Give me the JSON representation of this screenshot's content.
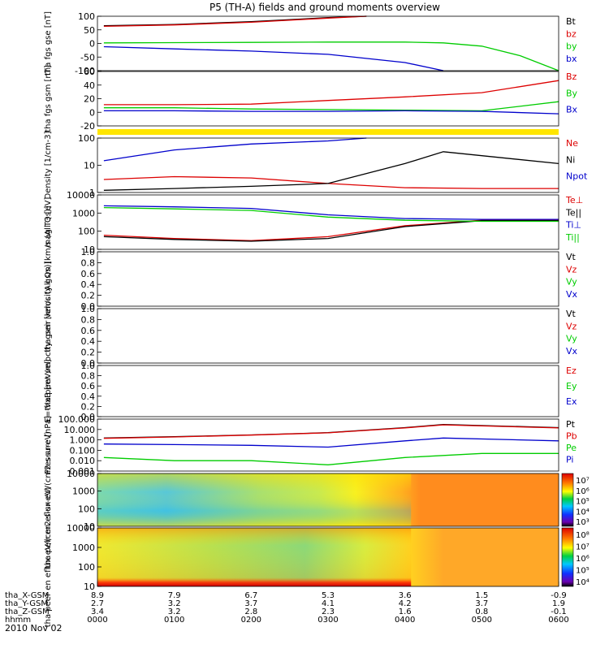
{
  "title": "P5 (TH-A) fields and ground moments overview",
  "date_label": "2010 Nov 02",
  "x_axis": {
    "rows": [
      {
        "label": "tha_X-GSM",
        "values": [
          "8.9",
          "7.9",
          "6.7",
          "5.3",
          "3.6",
          "1.5",
          "-0.9"
        ]
      },
      {
        "label": "tha_Y-GSM",
        "values": [
          "2.7",
          "3.2",
          "3.7",
          "4.1",
          "4.2",
          "3.7",
          "1.9"
        ]
      },
      {
        "label": "tha_Z-GSM",
        "values": [
          "3.4",
          "3.2",
          "2.8",
          "2.3",
          "1.6",
          "0.8",
          "-0.1"
        ]
      },
      {
        "label": "hhmm",
        "values": [
          "0000",
          "0100",
          "0200",
          "0300",
          "0400",
          "0500",
          "0600"
        ]
      }
    ]
  },
  "colors": {
    "black": "#000000",
    "red": "#dd0000",
    "green": "#00cc00",
    "blue": "#0000cc",
    "yellow": "#ffe600"
  },
  "chart_data": [
    {
      "type": "line",
      "id": "fgs_gse",
      "ylabel": "tha fgs gse [nT]",
      "yticks": [
        "100",
        "50",
        "0",
        "-50",
        "-100"
      ],
      "ylim": [
        -100,
        100
      ],
      "series": [
        {
          "name": "Bt",
          "color": "black",
          "x": [
            "0005",
            "0100",
            "0200",
            "0300",
            "0330"
          ],
          "y": [
            65,
            70,
            80,
            95,
            100
          ]
        },
        {
          "name": "bz",
          "color": "red",
          "x": [
            "0005",
            "0100",
            "0200",
            "0300",
            "0330"
          ],
          "y": [
            63,
            68,
            78,
            93,
            100
          ]
        },
        {
          "name": "by",
          "color": "green",
          "x": [
            "0005",
            "0100",
            "0200",
            "0300",
            "0400",
            "0430",
            "0500",
            "0530",
            "0600"
          ],
          "y": [
            2,
            3,
            4,
            5,
            5,
            2,
            -10,
            -45,
            -100
          ]
        },
        {
          "name": "bx",
          "color": "blue",
          "x": [
            "0005",
            "0100",
            "0200",
            "0300",
            "0400",
            "0430"
          ],
          "y": [
            -12,
            -20,
            -28,
            -40,
            -70,
            -100
          ]
        }
      ]
    },
    {
      "type": "line",
      "id": "fgs_gsm",
      "ylabel": "tha fgs gsm [nT]",
      "yticks": [
        "60",
        "40",
        "20",
        "0",
        "-20"
      ],
      "ylim": [
        -30,
        60
      ],
      "series": [
        {
          "name": "Bz",
          "color": "red",
          "x": [
            "0005",
            "0100",
            "0200",
            "0300",
            "0400",
            "0500",
            "0600"
          ],
          "y": [
            5,
            5,
            6,
            12,
            18,
            25,
            45
          ]
        },
        {
          "name": "By",
          "color": "green",
          "x": [
            "0005",
            "0100",
            "0200",
            "0300",
            "0400",
            "0500",
            "0600"
          ],
          "y": [
            0,
            0,
            -2,
            -3,
            -4,
            -5,
            10
          ]
        },
        {
          "name": "Bx",
          "color": "blue",
          "x": [
            "0005",
            "0100",
            "0200",
            "0300",
            "0400",
            "0500",
            "0600"
          ],
          "y": [
            -5,
            -5,
            -6,
            -6,
            -5,
            -6,
            -10
          ]
        }
      ]
    },
    {
      "type": "line",
      "id": "density",
      "ylabel": "Density [1/cm-3]",
      "yticks": [
        "100",
        "10",
        "1"
      ],
      "ylim": [
        0.8,
        200
      ],
      "yscale": "log",
      "series": [
        {
          "name": "Ne",
          "color": "red",
          "x": [
            "0005",
            "0100",
            "0200",
            "0300",
            "0400",
            "0500",
            "0600"
          ],
          "y": [
            3,
            4,
            3.5,
            2,
            1.3,
            1.2,
            1.2
          ]
        },
        {
          "name": "Ni",
          "color": "black",
          "x": [
            "0005",
            "0100",
            "0200",
            "0300",
            "0400",
            "0430",
            "0600"
          ],
          "y": [
            1,
            1.2,
            1.5,
            2,
            15,
            50,
            15
          ]
        },
        {
          "name": "Npot",
          "color": "blue",
          "x": [
            "0005",
            "0100",
            "0200",
            "0300",
            "0330"
          ],
          "y": [
            20,
            60,
            110,
            150,
            200
          ]
        }
      ]
    },
    {
      "type": "line",
      "id": "temperature",
      "ylabel": "mag T3 [eV]",
      "yticks": [
        "10000",
        "1000",
        "100",
        "10"
      ],
      "ylim": [
        10,
        10000
      ],
      "yscale": "log",
      "series": [
        {
          "name": "Te⊥",
          "color": "red",
          "x": [
            "0005",
            "0100",
            "0200",
            "0300",
            "0400",
            "0500",
            "0600"
          ],
          "y": [
            60,
            40,
            30,
            50,
            200,
            400,
            400
          ]
        },
        {
          "name": "Te||",
          "color": "black",
          "x": [
            "0005",
            "0100",
            "0200",
            "0300",
            "0400",
            "0500",
            "0600"
          ],
          "y": [
            50,
            35,
            28,
            40,
            180,
            380,
            380
          ]
        },
        {
          "name": "Ti⊥",
          "color": "blue",
          "x": [
            "0005",
            "0100",
            "0200",
            "0300",
            "0400",
            "0500",
            "0600"
          ],
          "y": [
            2500,
            2200,
            1800,
            800,
            500,
            450,
            450
          ]
        },
        {
          "name": "Ti||",
          "color": "green",
          "x": [
            "0005",
            "0100",
            "0200",
            "0300",
            "0400",
            "0500",
            "0600"
          ],
          "y": [
            2000,
            1700,
            1400,
            600,
            400,
            350,
            350
          ]
        }
      ]
    },
    {
      "type": "line",
      "id": "peir_velocity",
      "ylabel": "tha peir velocity gsm [km/s (All Qs)]",
      "yticks": [
        "1.0",
        "0.8",
        "0.6",
        "0.4",
        "0.2",
        "0.0"
      ],
      "ylim": [
        0,
        1
      ],
      "series": [
        {
          "name": "Vt",
          "color": "black",
          "x": [],
          "y": []
        },
        {
          "name": "Vz",
          "color": "red",
          "x": [],
          "y": []
        },
        {
          "name": "Vy",
          "color": "green",
          "x": [],
          "y": []
        },
        {
          "name": "Vx",
          "color": "blue",
          "x": [],
          "y": []
        }
      ]
    },
    {
      "type": "line",
      "id": "peer_velocity",
      "ylabel": "tha peer velocity gsm [km/s (All Qs)]",
      "yticks": [
        "1.0",
        "0.8",
        "0.6",
        "0.4",
        "0.2",
        "0.0"
      ],
      "ylim": [
        0,
        1
      ],
      "series": [
        {
          "name": "Vt",
          "color": "black",
          "x": [],
          "y": []
        },
        {
          "name": "Vz",
          "color": "red",
          "x": [],
          "y": []
        },
        {
          "name": "Vy",
          "color": "green",
          "x": [],
          "y": []
        },
        {
          "name": "Vx",
          "color": "blue",
          "x": [],
          "y": []
        }
      ]
    },
    {
      "type": "line",
      "id": "e_field",
      "ylabel": "E=-VxB [mV/m]",
      "yticks": [
        "1.0",
        "0.8",
        "0.6",
        "0.4",
        "0.2",
        "0.0"
      ],
      "ylim": [
        0,
        1
      ],
      "series": [
        {
          "name": "Ez",
          "color": "red",
          "x": [],
          "y": []
        },
        {
          "name": "Ey",
          "color": "green",
          "x": [],
          "y": []
        },
        {
          "name": "Ex",
          "color": "blue",
          "x": [],
          "y": []
        }
      ]
    },
    {
      "type": "line",
      "id": "pressure",
      "ylabel": "Pressure [nPa]",
      "yticks": [
        "100.000",
        "10.000",
        "1.000",
        "0.100",
        "0.010",
        "0.001"
      ],
      "ylim": [
        0.001,
        100
      ],
      "yscale": "log",
      "series": [
        {
          "name": "Pt",
          "color": "black",
          "x": [
            "0005",
            "0100",
            "0200",
            "0300",
            "0400",
            "0430",
            "0600"
          ],
          "y": [
            1.5,
            2,
            3,
            5,
            15,
            30,
            15
          ]
        },
        {
          "name": "Pb",
          "color": "red",
          "x": [
            "0005",
            "0100",
            "0200",
            "0300",
            "0400",
            "0430",
            "0600"
          ],
          "y": [
            1.4,
            1.9,
            2.9,
            4.8,
            14,
            28,
            14
          ]
        },
        {
          "name": "Pe",
          "color": "green",
          "x": [
            "0005",
            "0100",
            "0200",
            "0300",
            "0400",
            "0500",
            "0600"
          ],
          "y": [
            0.02,
            0.01,
            0.01,
            0.004,
            0.02,
            0.05,
            0.05
          ]
        },
        {
          "name": "Pi",
          "color": "blue",
          "x": [
            "0005",
            "0100",
            "0200",
            "0300",
            "0400",
            "0430",
            "0600"
          ],
          "y": [
            0.4,
            0.35,
            0.3,
            0.2,
            0.8,
            1.5,
            0.8
          ]
        }
      ]
    },
    {
      "type": "heatmap",
      "id": "peir_spectrogram",
      "ylabel": "tha peir en eflux eV/(cm2-s-sr-eV)",
      "yticks": [
        "10000",
        "1000",
        "100",
        "10"
      ],
      "yscale": "log",
      "ylim": [
        8,
        25000
      ],
      "colorbar_ticks": [
        "10⁷",
        "10⁶",
        "10⁵",
        "10⁴",
        "10³"
      ]
    },
    {
      "type": "heatmap",
      "id": "peer_spectrogram",
      "ylabel": "tha peer en eflux eV/(cm2-s-sr-eV)",
      "yticks": [
        "10000",
        "1000",
        "100",
        "10"
      ],
      "yscale": "log",
      "ylim": [
        8,
        25000
      ],
      "colorbar_ticks": [
        "10⁸",
        "10⁷",
        "10⁶",
        "10⁵",
        "10⁴"
      ]
    }
  ]
}
